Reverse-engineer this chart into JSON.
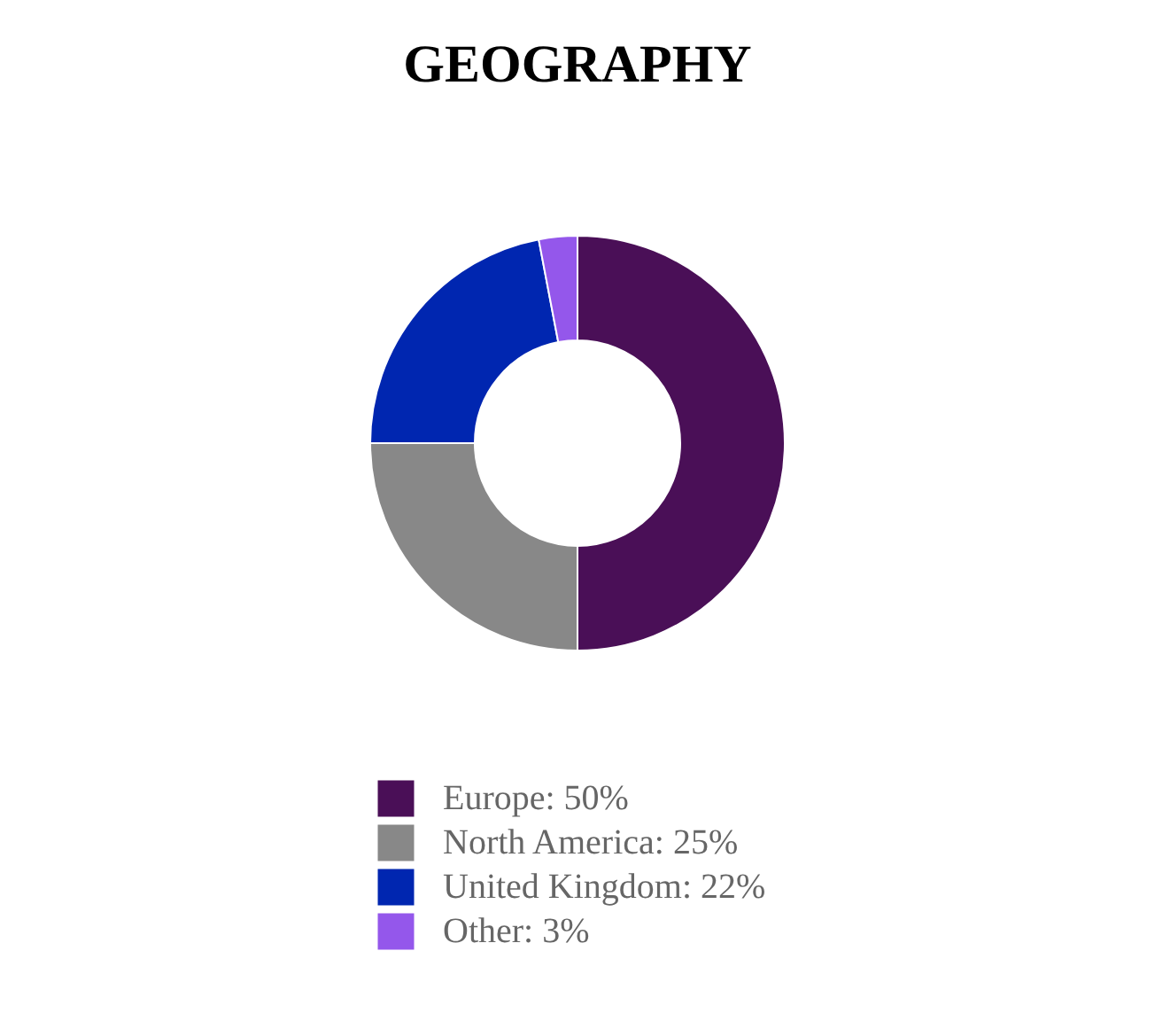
{
  "chart_data": {
    "type": "donut",
    "title": "GEOGRAPHY",
    "categories": [
      "Europe: 50%",
      "North America: 25%",
      "United Kingdom: 22%",
      "Other: 3%"
    ],
    "values": [
      50,
      25,
      22,
      3
    ],
    "colors": [
      "#4a0f57",
      "#888888",
      "#0026b0",
      "#9457eb"
    ],
    "legend": "bottom"
  }
}
